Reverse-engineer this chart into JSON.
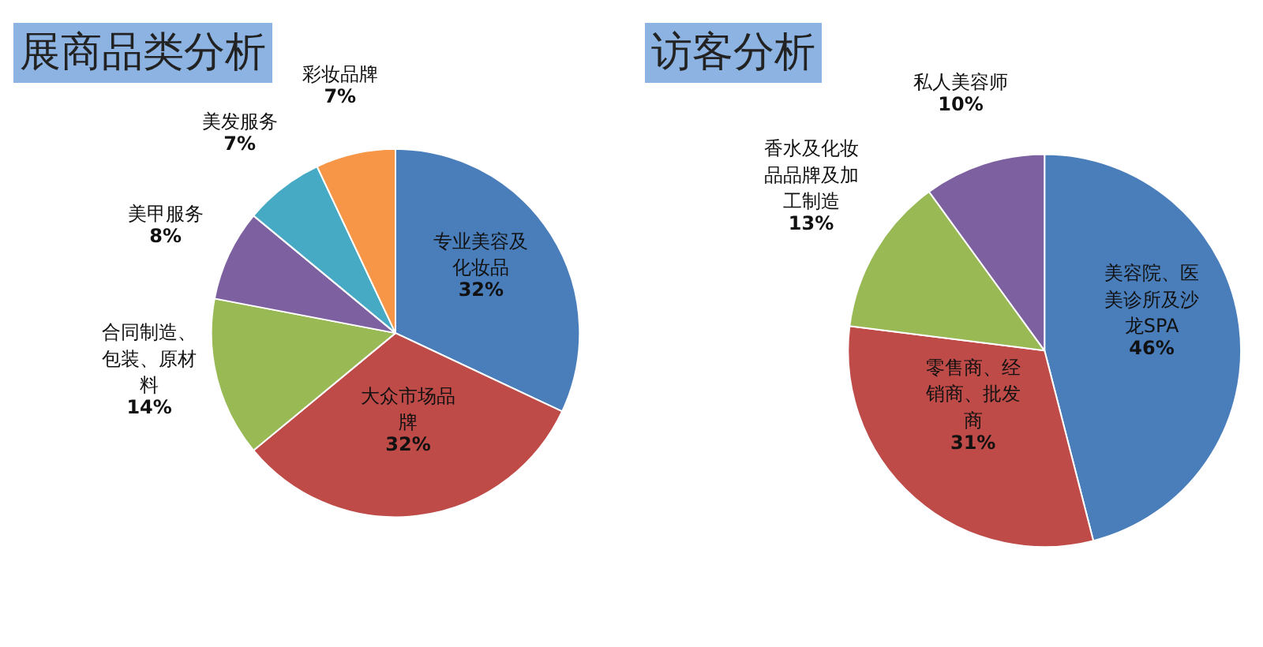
{
  "chart_data": [
    {
      "type": "pie",
      "title": "展商品类分析",
      "categories": [
        "专业美容及化妆品",
        "大众市场品牌",
        "合同制造、包装、原材料",
        "美甲服务",
        "美发服务",
        "彩妆品牌"
      ],
      "values": [
        32,
        32,
        14,
        8,
        7,
        7
      ],
      "value_labels": [
        "32%",
        "32%",
        "14%",
        "8%",
        "7%",
        "7%"
      ],
      "colors": [
        "#4a7ebb",
        "#be4b48",
        "#98b954",
        "#7d60a0",
        "#46aac5",
        "#f79646"
      ]
    },
    {
      "type": "pie",
      "title": "访客分析",
      "categories": [
        "美容院、医美诊所及沙龙SPA",
        "零售商、经销商、批发商",
        "香水及化妆品品牌及加工制造",
        "私人美容师"
      ],
      "values": [
        46,
        31,
        13,
        10
      ],
      "value_labels": [
        "46%",
        "31%",
        "13%",
        "10%"
      ],
      "colors": [
        "#4a7ebb",
        "#be4b48",
        "#98b954",
        "#7d60a0"
      ]
    }
  ]
}
